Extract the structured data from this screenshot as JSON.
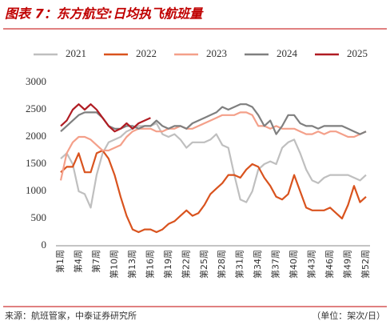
{
  "chart_data": {
    "type": "line",
    "title": "图表 7：东方航空:日均执飞航班量",
    "source": "来源：航班管家，中泰证券研究所",
    "unit": "（单位：架次/日）",
    "categories": [
      "第1周",
      null,
      null,
      "第4周",
      null,
      null,
      "第7周",
      null,
      null,
      "第10周",
      null,
      null,
      "第13周",
      null,
      null,
      "第16周",
      null,
      null,
      "第19周",
      null,
      null,
      "第22周",
      null,
      null,
      "第25周",
      null,
      null,
      "第28周",
      null,
      null,
      "第31周",
      null,
      null,
      "第34周",
      null,
      null,
      "第37周",
      null,
      null,
      "第40周",
      null,
      null,
      "第43周",
      null,
      null,
      "第46周",
      null,
      null,
      "第49周",
      null,
      null,
      "第52周"
    ],
    "ylim": [
      0,
      3000
    ],
    "yticks": [
      0,
      500,
      1000,
      1500,
      2000,
      2500,
      3000
    ],
    "grid": false,
    "legend": "top",
    "series": [
      {
        "name": "2021",
        "color": "#bfbfbf",
        "values": [
          1600,
          1700,
          1500,
          1000,
          950,
          700,
          1300,
          1700,
          1900,
          1950,
          2000,
          2100,
          2150,
          2200,
          2200,
          2200,
          2250,
          2050,
          2000,
          2050,
          1950,
          1800,
          1900,
          1900,
          1900,
          1950,
          2050,
          1850,
          1800,
          1300,
          850,
          800,
          1000,
          1400,
          1500,
          1550,
          1500,
          1800,
          1900,
          1950,
          1700,
          1400,
          1200,
          1150,
          1250,
          1300,
          1300,
          1300,
          1300,
          1250,
          1200,
          1300
        ]
      },
      {
        "name": "2022",
        "color": "#d9531e",
        "values": [
          1350,
          1450,
          1450,
          1700,
          1350,
          1350,
          1700,
          1750,
          1600,
          1300,
          900,
          550,
          300,
          250,
          300,
          300,
          250,
          300,
          400,
          450,
          550,
          650,
          550,
          600,
          750,
          950,
          1050,
          1150,
          1300,
          1300,
          1250,
          1400,
          1500,
          1450,
          1250,
          1100,
          900,
          850,
          950,
          1300,
          1000,
          700,
          650,
          650,
          650,
          700,
          600,
          500,
          750,
          1100,
          800,
          900
        ]
      },
      {
        "name": "2023",
        "color": "#f4a08a",
        "values": [
          1200,
          1700,
          1900,
          2000,
          2000,
          1950,
          1850,
          1750,
          1750,
          1800,
          1850,
          2000,
          2100,
          2150,
          2150,
          2150,
          2100,
          2100,
          2150,
          2150,
          2200,
          2150,
          2150,
          2200,
          2250,
          2300,
          2350,
          2400,
          2400,
          2400,
          2450,
          2450,
          2400,
          2200,
          2200,
          2150,
          2200,
          2150,
          2150,
          2150,
          2100,
          2050,
          2050,
          2100,
          2050,
          2100,
          2100,
          2050,
          2000,
          2000,
          2050,
          2100
        ]
      },
      {
        "name": "2024",
        "color": "#7f7f7f",
        "values": [
          2100,
          2200,
          2300,
          2400,
          2450,
          2450,
          2450,
          2350,
          2200,
          2150,
          2150,
          2200,
          2200,
          2150,
          2200,
          2200,
          2300,
          2200,
          2150,
          2200,
          2200,
          2150,
          2250,
          2300,
          2350,
          2400,
          2450,
          2550,
          2500,
          2550,
          2600,
          2600,
          2550,
          2400,
          2200,
          2300,
          2050,
          2200,
          2400,
          2400,
          2250,
          2200,
          2200,
          2150,
          2200,
          2200,
          2200,
          2200,
          2150,
          2100,
          2050,
          2100
        ]
      },
      {
        "name": "2025",
        "color": "#b01c23",
        "values": [
          2200,
          2300,
          2500,
          2600,
          2500,
          2600,
          2500,
          2350,
          2200,
          2100,
          2150,
          2250,
          2150,
          2250,
          2300,
          2350,
          null,
          null,
          null,
          null,
          null,
          null,
          null,
          null,
          null,
          null,
          null,
          null,
          null,
          null,
          null,
          null,
          null,
          null,
          null,
          null,
          null,
          null,
          null,
          null,
          null,
          null,
          null,
          null,
          null,
          null,
          null,
          null,
          null,
          null,
          null,
          null
        ]
      }
    ]
  }
}
